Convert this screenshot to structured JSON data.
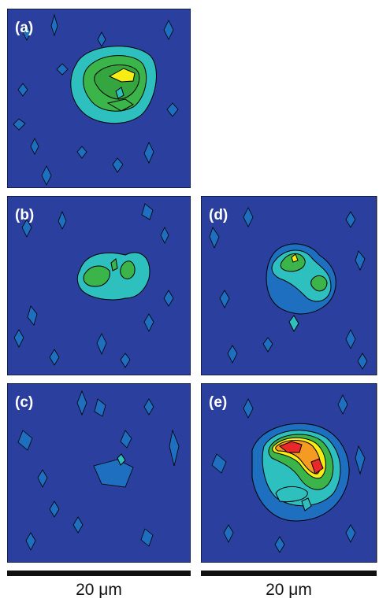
{
  "panels": {
    "a": {
      "label": "(a)"
    },
    "b": {
      "label": "(b)"
    },
    "c": {
      "label": "(c)"
    },
    "d": {
      "label": "(d)"
    },
    "e": {
      "label": "(e)"
    }
  },
  "scale": {
    "left_label": "20 μm",
    "right_label": "20 μm"
  },
  "colors": {
    "background": "#2b3f9e",
    "level1": "#1e6fc0",
    "level2": "#2ec0bf",
    "level3": "#3bb54a",
    "level4": "#f7ec13",
    "level5": "#e8282a",
    "level6": "#f59a22"
  }
}
